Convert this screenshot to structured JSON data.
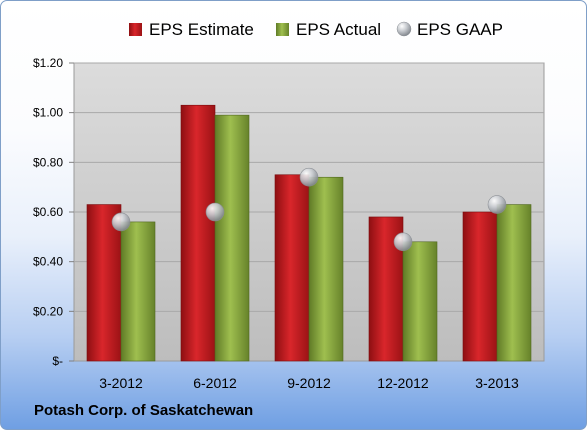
{
  "colors": {
    "estimate": "#c8171c",
    "actual": "#8dad3f",
    "gaap": "#b8bcc2",
    "plot_background": "#cbcbcb",
    "gridline": "#a8a8a8"
  },
  "caption": "Potash Corp. of Saskatchewan",
  "chart_data": {
    "type": "bar",
    "categories": [
      "3-2012",
      "6-2012",
      "9-2012",
      "12-2012",
      "3-2013"
    ],
    "series": [
      {
        "name": "EPS Estimate",
        "kind": "bar",
        "color": "#c8171c",
        "values": [
          0.63,
          1.03,
          0.75,
          0.58,
          0.6
        ]
      },
      {
        "name": "EPS Actual",
        "kind": "bar",
        "color": "#8dad3f",
        "values": [
          0.56,
          0.99,
          0.74,
          0.48,
          0.63
        ]
      },
      {
        "name": "EPS GAAP",
        "kind": "marker",
        "color": "#b8bcc2",
        "values": [
          0.56,
          0.6,
          0.74,
          0.48,
          0.63
        ]
      }
    ],
    "ylim": [
      0,
      1.2
    ],
    "yticks": [
      0,
      0.2,
      0.4,
      0.6,
      0.8,
      1.0,
      1.2
    ],
    "ytick_labels": [
      "$-",
      "$0.20",
      "$0.40",
      "$0.60",
      "$0.80",
      "$1.00",
      "$1.20"
    ],
    "grid": true,
    "legend_position": "top"
  }
}
